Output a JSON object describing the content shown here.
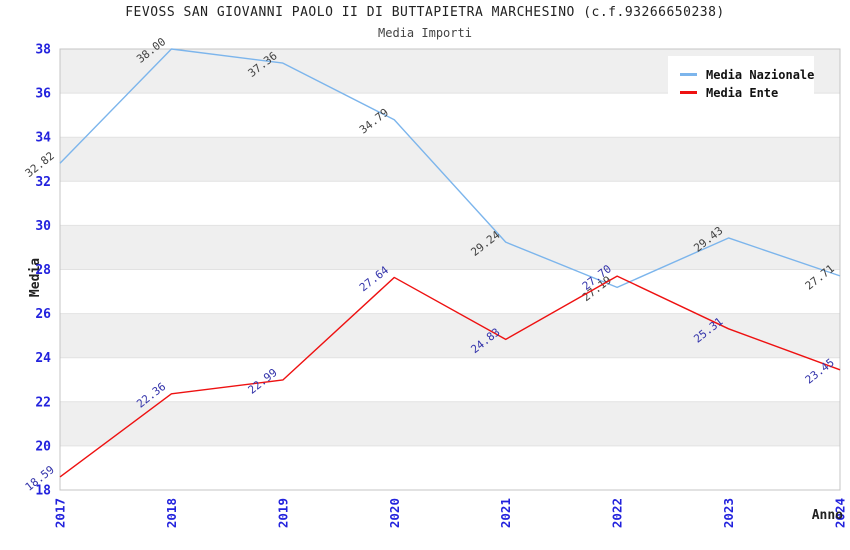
{
  "header": {
    "title": "FEVOSS SAN GIOVANNI PAOLO II DI BUTTAPIETRA MARCHESINO (c.f.93266650238)",
    "subtitle": "Media Importi"
  },
  "legend": {
    "position": "top-right",
    "items": [
      {
        "label": "Media Nazionale",
        "color": "#7cb5ec"
      },
      {
        "label": "Media Ente",
        "color": "#ee1111"
      }
    ]
  },
  "chart_data": {
    "type": "line",
    "title": "FEVOSS SAN GIOVANNI PAOLO II DI BUTTAPIETRA MARCHESINO (c.f.93266650238)",
    "subtitle": "Media Importi",
    "x": [
      2017,
      2018,
      2019,
      2020,
      2021,
      2022,
      2023,
      2024
    ],
    "xlabel": "Anno",
    "ylabel": "Media",
    "ylim": [
      18,
      38
    ],
    "ytick_step": 2,
    "grid": true,
    "legend_position": "top-right",
    "series": [
      {
        "name": "Media Nazionale",
        "color": "#7cb5ec",
        "label_color": "#404040",
        "values": [
          32.82,
          38.0,
          37.36,
          34.79,
          29.24,
          27.19,
          29.43,
          27.71
        ]
      },
      {
        "name": "Media Ente",
        "color": "#ee1111",
        "label_color": "#3333aa",
        "values": [
          18.59,
          22.36,
          22.99,
          27.64,
          24.83,
          27.7,
          25.31,
          23.45
        ]
      }
    ],
    "colors": {
      "tick_label": "#2222dd",
      "band_gray": "#efefef",
      "band_white": "#ffffff",
      "gridline": "#e2e2e2",
      "plot_border": "#c4c4c4"
    }
  }
}
